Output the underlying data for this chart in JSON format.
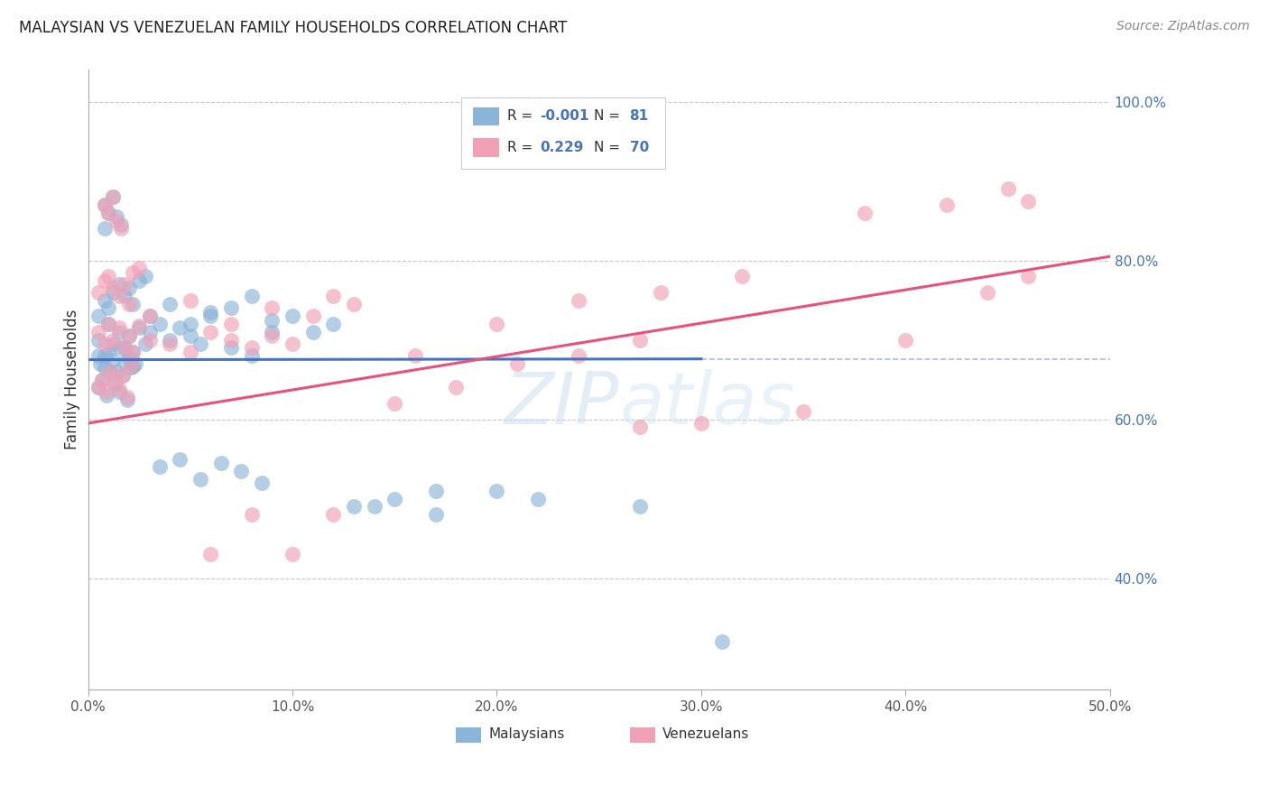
{
  "title": "MALAYSIAN VS VENEZUELAN FAMILY HOUSEHOLDS CORRELATION CHART",
  "source": "Source: ZipAtlas.com",
  "ylabel": "Family Households",
  "ytick_labels": [
    "100.0%",
    "80.0%",
    "60.0%",
    "40.0%"
  ],
  "ytick_values": [
    1.0,
    0.8,
    0.6,
    0.4
  ],
  "xmin": 0.0,
  "xmax": 0.5,
  "ymin": 0.26,
  "ymax": 1.04,
  "blue_color": "#8ab4d8",
  "pink_color": "#f2a0b5",
  "blue_line_color": "#4472c4",
  "pink_line_color": "#e8527a",
  "grid_color": "#c8c8c8",
  "watermark_text": "ZIPatlas",
  "blue_line_x0": 0.0,
  "blue_line_y0": 0.675,
  "blue_line_x1": 0.3,
  "blue_line_y1": 0.676,
  "pink_line_x0": 0.0,
  "pink_line_y0": 0.595,
  "pink_line_x1": 0.5,
  "pink_line_y1": 0.805,
  "dash_line_y": 0.676,
  "dash_line_x0": 0.3,
  "dash_line_x1": 0.5,
  "malaysian_x": [
    0.005,
    0.008,
    0.01,
    0.012,
    0.015,
    0.018,
    0.02,
    0.022,
    0.025,
    0.028,
    0.005,
    0.008,
    0.01,
    0.012,
    0.015,
    0.018,
    0.02,
    0.022,
    0.025,
    0.028,
    0.005,
    0.007,
    0.009,
    0.011,
    0.013,
    0.015,
    0.017,
    0.019,
    0.021,
    0.023,
    0.005,
    0.006,
    0.008,
    0.01,
    0.012,
    0.014,
    0.016,
    0.018,
    0.02,
    0.022,
    0.03,
    0.035,
    0.04,
    0.045,
    0.05,
    0.055,
    0.06,
    0.07,
    0.08,
    0.09,
    0.03,
    0.04,
    0.05,
    0.06,
    0.07,
    0.08,
    0.09,
    0.1,
    0.11,
    0.12,
    0.035,
    0.045,
    0.055,
    0.065,
    0.075,
    0.085,
    0.13,
    0.15,
    0.17,
    0.2,
    0.008,
    0.008,
    0.01,
    0.012,
    0.014,
    0.016,
    0.14,
    0.17,
    0.22,
    0.27,
    0.31
  ],
  "malaysian_y": [
    0.7,
    0.68,
    0.72,
    0.695,
    0.71,
    0.69,
    0.705,
    0.685,
    0.715,
    0.695,
    0.73,
    0.75,
    0.74,
    0.76,
    0.77,
    0.755,
    0.765,
    0.745,
    0.775,
    0.78,
    0.64,
    0.65,
    0.63,
    0.66,
    0.645,
    0.635,
    0.655,
    0.625,
    0.665,
    0.67,
    0.68,
    0.67,
    0.665,
    0.685,
    0.675,
    0.66,
    0.69,
    0.672,
    0.678,
    0.667,
    0.71,
    0.72,
    0.7,
    0.715,
    0.705,
    0.695,
    0.73,
    0.69,
    0.68,
    0.71,
    0.73,
    0.745,
    0.72,
    0.735,
    0.74,
    0.755,
    0.725,
    0.73,
    0.71,
    0.72,
    0.54,
    0.55,
    0.525,
    0.545,
    0.535,
    0.52,
    0.49,
    0.5,
    0.48,
    0.51,
    0.87,
    0.84,
    0.86,
    0.88,
    0.855,
    0.845,
    0.49,
    0.51,
    0.5,
    0.49,
    0.32
  ],
  "venezuelan_x": [
    0.005,
    0.008,
    0.01,
    0.012,
    0.015,
    0.018,
    0.02,
    0.022,
    0.025,
    0.005,
    0.008,
    0.01,
    0.012,
    0.015,
    0.018,
    0.02,
    0.022,
    0.025,
    0.005,
    0.007,
    0.009,
    0.011,
    0.013,
    0.015,
    0.017,
    0.019,
    0.021,
    0.03,
    0.04,
    0.05,
    0.06,
    0.07,
    0.08,
    0.09,
    0.1,
    0.03,
    0.05,
    0.07,
    0.09,
    0.11,
    0.13,
    0.008,
    0.01,
    0.012,
    0.014,
    0.016,
    0.15,
    0.18,
    0.21,
    0.24,
    0.27,
    0.12,
    0.16,
    0.2,
    0.24,
    0.28,
    0.32,
    0.38,
    0.42,
    0.45,
    0.46,
    0.06,
    0.08,
    0.1,
    0.12,
    0.27,
    0.3,
    0.35,
    0.4,
    0.44,
    0.46
  ],
  "venezuelan_y": [
    0.71,
    0.695,
    0.72,
    0.7,
    0.715,
    0.69,
    0.705,
    0.685,
    0.718,
    0.76,
    0.775,
    0.78,
    0.765,
    0.755,
    0.77,
    0.745,
    0.785,
    0.79,
    0.64,
    0.65,
    0.635,
    0.66,
    0.648,
    0.638,
    0.655,
    0.628,
    0.668,
    0.7,
    0.695,
    0.685,
    0.71,
    0.7,
    0.69,
    0.705,
    0.695,
    0.73,
    0.75,
    0.72,
    0.74,
    0.73,
    0.745,
    0.87,
    0.86,
    0.88,
    0.85,
    0.84,
    0.62,
    0.64,
    0.67,
    0.68,
    0.7,
    0.755,
    0.68,
    0.72,
    0.75,
    0.76,
    0.78,
    0.86,
    0.87,
    0.89,
    0.875,
    0.43,
    0.48,
    0.43,
    0.48,
    0.59,
    0.595,
    0.61,
    0.7,
    0.76,
    0.78
  ]
}
